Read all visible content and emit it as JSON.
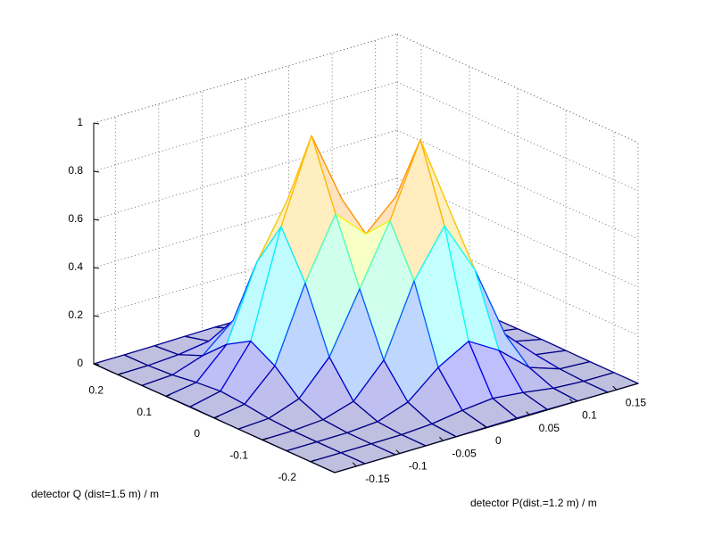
{
  "chart_data": {
    "type": "surface",
    "xlabel": "detector P(dist.=1.2 m) / m",
    "ylabel": "detector Q (dist=1.5 m) / m",
    "x": [
      -0.175,
      -0.14,
      -0.105,
      -0.07,
      -0.035,
      0,
      0.035,
      0.07,
      0.105,
      0.14,
      0.175
    ],
    "y": [
      -0.25,
      -0.2,
      -0.15,
      -0.1,
      -0.05,
      0,
      0.05,
      0.1,
      0.15,
      0.2,
      0.25
    ],
    "z": [
      [
        0,
        0,
        0,
        0,
        0.001,
        0.003,
        0.004,
        0.003,
        0.001,
        0,
        0
      ],
      [
        0,
        0,
        0,
        0.001,
        0.009,
        0.028,
        0.041,
        0.028,
        0.009,
        0.001,
        0
      ],
      [
        0,
        0,
        0.001,
        0.01,
        0.054,
        0.161,
        0.233,
        0.158,
        0.05,
        0.007,
        0
      ],
      [
        0,
        0.001,
        0.01,
        0.049,
        0.183,
        0.475,
        0.667,
        0.448,
        0.142,
        0.021,
        0.001
      ],
      [
        0,
        0.007,
        0.052,
        0.188,
        0.434,
        0.68,
        0.98,
        0.639,
        0.201,
        0.03,
        0.002
      ],
      [
        0.001,
        0.021,
        0.143,
        0.45,
        0.7,
        0.58,
        0.7,
        0.45,
        0.143,
        0.021,
        0.001
      ],
      [
        0.002,
        0.03,
        0.201,
        0.639,
        0.98,
        0.68,
        0.434,
        0.188,
        0.052,
        0.007,
        0
      ],
      [
        0.001,
        0.021,
        0.142,
        0.448,
        0.667,
        0.475,
        0.183,
        0.049,
        0.01,
        0.001,
        0
      ],
      [
        0,
        0.007,
        0.05,
        0.158,
        0.233,
        0.161,
        0.054,
        0.01,
        0.001,
        0,
        0
      ],
      [
        0,
        0.001,
        0.009,
        0.028,
        0.041,
        0.028,
        0.009,
        0.001,
        0,
        0,
        0
      ],
      [
        0,
        0,
        0.001,
        0.003,
        0.004,
        0.003,
        0.001,
        0,
        0,
        0,
        0
      ]
    ],
    "xlim": [
      -0.175,
      0.175
    ],
    "ylim": [
      -0.25,
      0.25
    ],
    "zlim": [
      0,
      1
    ],
    "xticks": [
      -0.15,
      -0.1,
      -0.05,
      0,
      0.05,
      0.1,
      0.15
    ],
    "yticks": [
      -0.2,
      -0.1,
      0,
      0.1,
      0.2
    ],
    "zticks": [
      0,
      0.2,
      0.4,
      0.6,
      0.8,
      1
    ],
    "grid": true,
    "colormap": "jet"
  }
}
